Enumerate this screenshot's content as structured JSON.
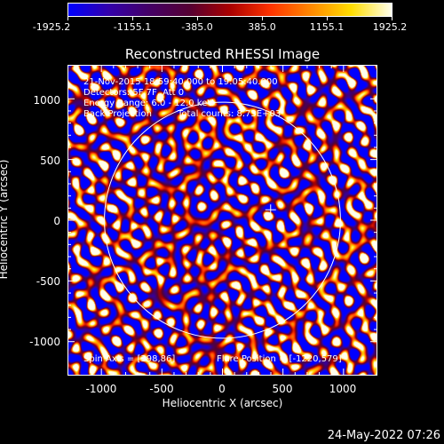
{
  "colorbar": {
    "labels": [
      "-1925.2",
      "-1155.1",
      "-385.0",
      "385.0",
      "1155.1",
      "1925.2"
    ]
  },
  "title": "Reconstructed RHESSI Image",
  "info": {
    "time": "21-Nov-2015 18:59:40.000 to 19:05:40.000",
    "detectors": "Detectors: 5F 7F, Att 0",
    "energy": "Energy Range: 6.0 - 12.0 keV",
    "method": "Back Projection",
    "counts": "Total counts: 8.73E+03",
    "spin_axis": "Spin Axis = [398,86]",
    "flare_position": "Flare Position = [-1220,579]"
  },
  "axes": {
    "xlabel": "Heliocentric X (arcsec)",
    "ylabel": "Heliocentric Y (arcsec)",
    "xticks": [
      "-1000",
      "-500",
      "0",
      "500",
      "1000"
    ],
    "yticks": [
      "1000",
      "500",
      "0",
      "-500",
      "-1000"
    ],
    "xlim": [
      -1280,
      1280
    ],
    "ylim": [
      -1280,
      1280
    ]
  },
  "solar_limb": {
    "center": [
      0,
      0
    ],
    "radius_arcsec": 975
  },
  "map_center_marker": [
    398,
    86
  ],
  "footer": {
    "date": "24-May-2022 07:26"
  },
  "colors": {
    "colormap": [
      "#0000ff",
      "#3300aa",
      "#440066",
      "#550033",
      "#aa0000",
      "#ff3300",
      "#ff8800",
      "#ffdd00",
      "#ffffee"
    ],
    "annotation": "#ffffff"
  }
}
